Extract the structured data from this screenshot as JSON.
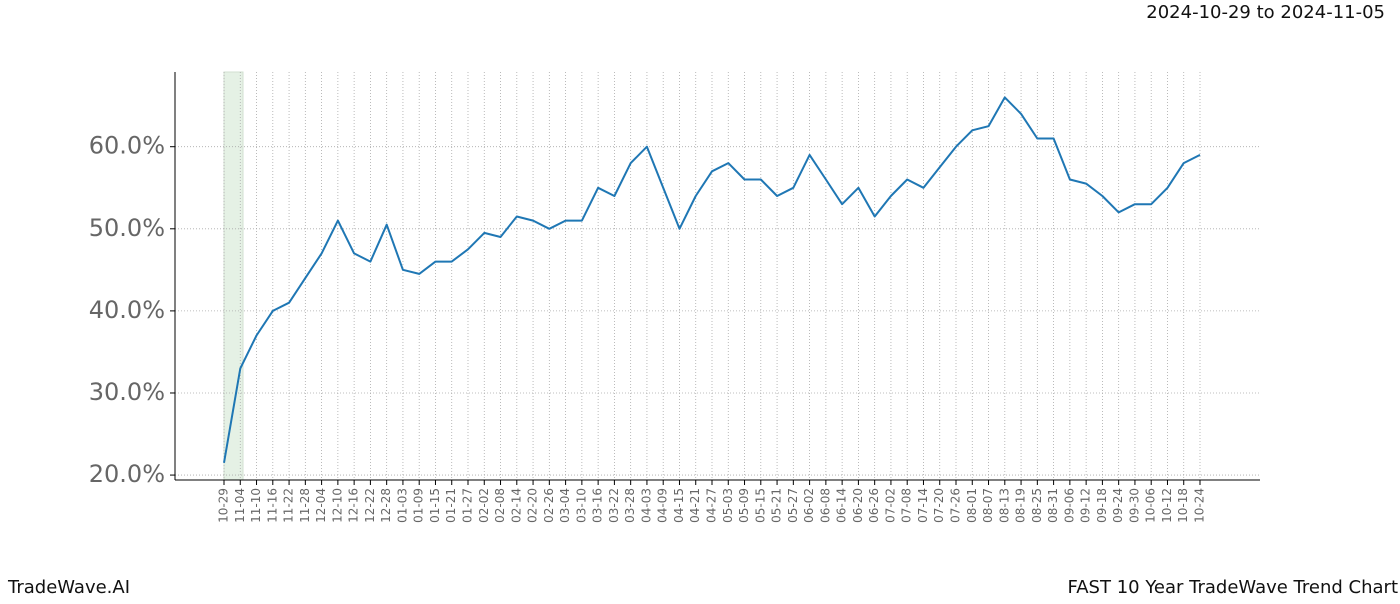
{
  "chart_data": {
    "type": "line",
    "title": "2024-10-29 to 2024-11-05",
    "brand": "TradeWave.AI",
    "footer": "FAST 10 Year TradeWave Trend Chart",
    "categories": [
      "10-29",
      "11-04",
      "11-10",
      "11-16",
      "11-22",
      "11-28",
      "12-04",
      "12-10",
      "12-16",
      "12-22",
      "12-28",
      "01-03",
      "01-09",
      "01-15",
      "01-21",
      "01-27",
      "02-02",
      "02-08",
      "02-14",
      "02-20",
      "02-26",
      "03-04",
      "03-10",
      "03-16",
      "03-22",
      "03-28",
      "04-03",
      "04-09",
      "04-15",
      "04-21",
      "04-27",
      "05-03",
      "05-09",
      "05-15",
      "05-21",
      "05-27",
      "06-02",
      "06-08",
      "06-14",
      "06-20",
      "06-26",
      "07-02",
      "07-08",
      "07-14",
      "07-20",
      "07-26",
      "08-01",
      "08-07",
      "08-13",
      "08-19",
      "08-25",
      "08-31",
      "09-06",
      "09-12",
      "09-18",
      "09-24",
      "09-30",
      "10-06",
      "10-12",
      "10-18",
      "10-24"
    ],
    "values": [
      21.5,
      33,
      37,
      40,
      41,
      44,
      47,
      51,
      47,
      46,
      50.5,
      45,
      44.5,
      46,
      46,
      47.5,
      49.5,
      49,
      51.5,
      51,
      50,
      51,
      51,
      55,
      54,
      58,
      60,
      55,
      50,
      54,
      57,
      58,
      56,
      56,
      54,
      55,
      59,
      56,
      53,
      55,
      51.5,
      54,
      56,
      55,
      57.5,
      60,
      62,
      62.5,
      66,
      64,
      61,
      61,
      56,
      55.5,
      54,
      52,
      53,
      53,
      55,
      58,
      59
    ],
    "color": "#1f77b4",
    "ylim": [
      19.4,
      69.1
    ],
    "yticks": [
      {
        "value": 20,
        "label": "20.0%"
      },
      {
        "value": 30,
        "label": "30.0%"
      },
      {
        "value": 40,
        "label": "40.0%"
      },
      {
        "value": 50,
        "label": "50.0%"
      },
      {
        "value": 60,
        "label": "60.0%"
      }
    ],
    "grid": true
  }
}
